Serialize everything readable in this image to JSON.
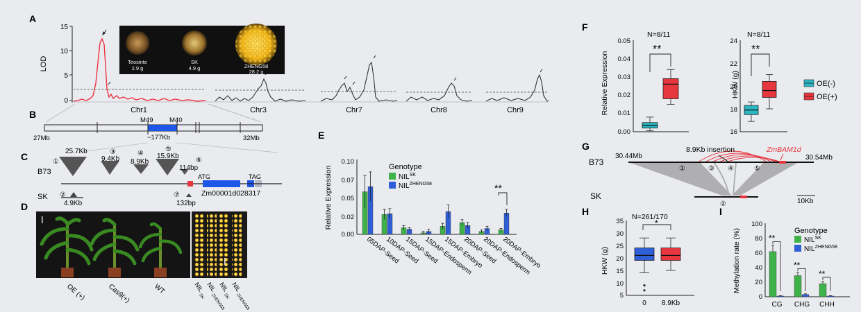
{
  "panels": {
    "a": {
      "letter": "A",
      "ylabel": "LOD",
      "yticks": [
        "15",
        "10",
        "5",
        "0"
      ],
      "chromosomes": [
        "Chr1",
        "Chr3",
        "Chr7",
        "Chr8",
        "Chr9"
      ],
      "photos": [
        {
          "name": "Teosinte",
          "weight": "2.9 g"
        },
        {
          "name": "SK",
          "weight": "4.9 g"
        },
        {
          "name": "ZHENG58",
          "weight": "28.2 g"
        }
      ]
    },
    "b": {
      "letter": "B",
      "left_end": "27Mb",
      "right_end": "32Mb",
      "marker_left": "M49",
      "marker_right": "M40",
      "interval": "~177Kb"
    },
    "c": {
      "letter": "C",
      "b73_label": "B73",
      "sk_label": "SK",
      "b73_numbers": [
        "①",
        "③",
        "④",
        "⑤",
        "⑥"
      ],
      "b73_sizes": [
        "25.7Kb",
        "9.4Kb",
        "8.9Kb",
        "15.9Kb",
        "114bp"
      ],
      "sk_numbers": [
        "②",
        "⑦"
      ],
      "sk_sizes": [
        "4.9Kb",
        "132bp"
      ],
      "atg": "ATG",
      "tag": "TAG",
      "gene_id": "Zm00001d028317"
    },
    "d": {
      "letter": "D",
      "plant_labels": [
        "OE (+)",
        "Cas9(+)",
        "WT"
      ],
      "kernel_labels": [
        "NIL",
        "SK",
        "NIL",
        "ZHENG58",
        "NIL",
        "SK",
        "NIL",
        "ZHENG58"
      ]
    },
    "e": {
      "letter": "E",
      "ylabel": "Relative Expression",
      "yticks": [
        "0.10",
        "0.07",
        "0.05",
        "0.02",
        "0.00"
      ],
      "legend_title": "Genotype",
      "legend_items": [
        {
          "base": "NIL",
          "sup": "SK"
        },
        {
          "base": "NIL",
          "sup": "ZHENG58"
        }
      ],
      "significance": "**",
      "categories": [
        "05DAP-Seed",
        "10DAP-Seed",
        "15DAP-Seed",
        "15DAP-Endosperm",
        "15DAP-Embryo",
        "20DAP-Seed",
        "20DAP-Endosperm",
        "20DAP-Embryo"
      ]
    },
    "f": {
      "letter": "F",
      "left_n": "N=8/11",
      "left_sig": "**",
      "left_ylabel": "Relative Expression",
      "left_yticks": [
        "0.05",
        "0.04",
        "0.03",
        "0.02",
        "0.01",
        "0.00"
      ],
      "right_n": "N=8/11",
      "right_sig": "**",
      "right_ylabel": "HKW (g)",
      "right_yticks": [
        "24",
        "22",
        "20",
        "18",
        "16"
      ],
      "legend": [
        "OE(-)",
        "OE(+)"
      ]
    },
    "g": {
      "letter": "G",
      "b73_label": "B73",
      "sk_label": "SK",
      "left_coord": "30.44Mb",
      "right_coord": "30.54Mb",
      "insertion_label": "8.9Kb insertion",
      "gene_label": "ZmBAM1d",
      "site_numbers": [
        "①",
        "③",
        "④",
        "⑤"
      ],
      "sk_site": "②",
      "scale": "10Kb"
    },
    "h": {
      "letter": "H",
      "n_label": "N=261/170",
      "sig": "*",
      "ylabel": "HKW (g)",
      "yticks": [
        "35",
        "30",
        "25",
        "20",
        "15",
        "10",
        "5"
      ],
      "xticks": [
        "0",
        "8.9Kb"
      ]
    },
    "i": {
      "letter": "I",
      "ylabel": "Methylation rate (%)",
      "yticks": [
        "100",
        "80",
        "60",
        "40",
        "20",
        "0"
      ],
      "legend_title": "Genotype",
      "legend_items": [
        {
          "base": "NIL",
          "sup": "SK"
        },
        {
          "base": "NIL",
          "sup": "ZHENG58"
        }
      ],
      "sigs": [
        "**",
        "**",
        "**"
      ],
      "categories": [
        "CG",
        "CHG",
        "CHH"
      ]
    }
  },
  "colors": {
    "green": "#3fb24a",
    "blue": "#2f5fd6",
    "teal": "#2bb6c4",
    "red": "#e8363f",
    "lod_red": "#ee3344"
  },
  "chart_data": [
    {
      "type": "bar",
      "panel": "E",
      "categories": [
        "05DAP-Seed",
        "10DAP-Seed",
        "15DAP-Seed",
        "15DAP-Endosperm",
        "15DAP-Embryo",
        "20DAP-Seed",
        "20DAP-Endosperm",
        "20DAP-Embryo"
      ],
      "series": [
        {
          "name": "NIL SK",
          "values": [
            0.058,
            0.027,
            0.009,
            0.002,
            0.011,
            0.016,
            0.004,
            0.006
          ]
        },
        {
          "name": "NIL ZHENG58",
          "values": [
            0.065,
            0.028,
            0.007,
            0.004,
            0.031,
            0.012,
            0.008,
            0.029
          ]
        }
      ],
      "errors": [
        [
          0.022,
          0.007,
          0.003,
          0.002,
          0.004,
          0.004,
          0.002,
          0.002
        ],
        [
          0.02,
          0.007,
          0.002,
          0.003,
          0.009,
          0.004,
          0.003,
          0.005
        ]
      ],
      "ylabel": "Relative Expression",
      "ylim": [
        0,
        0.1
      ]
    },
    {
      "type": "bar",
      "panel": "I",
      "categories": [
        "CG",
        "CHG",
        "CHH"
      ],
      "series": [
        {
          "name": "NIL SK",
          "values": [
            62,
            29,
            18
          ]
        },
        {
          "name": "NIL ZHENG58",
          "values": [
            1,
            3,
            1
          ]
        }
      ],
      "errors": [
        [
          8,
          4,
          3
        ],
        [
          0.5,
          1,
          0.5
        ]
      ],
      "ylabel": "Methylation rate (%)",
      "ylim": [
        0,
        100
      ]
    },
    {
      "type": "box",
      "panel": "F-left",
      "groups": [
        "OE(-)",
        "OE(+)"
      ],
      "boxes": [
        {
          "min": 0.0005,
          "q1": 0.002,
          "median": 0.0035,
          "q3": 0.005,
          "max": 0.008
        },
        {
          "min": 0.015,
          "q1": 0.018,
          "median": 0.026,
          "q3": 0.029,
          "max": 0.034
        }
      ],
      "ylim": [
        0,
        0.05
      ]
    },
    {
      "type": "box",
      "panel": "F-right",
      "groups": [
        "OE(-)",
        "OE(+)"
      ],
      "boxes": [
        {
          "min": 16.9,
          "q1": 17.5,
          "median": 17.9,
          "q3": 18.3,
          "max": 18.6
        },
        {
          "min": 18.0,
          "q1": 19.0,
          "median": 19.6,
          "q3": 20.4,
          "max": 21.0
        }
      ],
      "ylim": [
        16,
        24
      ]
    },
    {
      "type": "box",
      "panel": "H",
      "groups": [
        "0",
        "8.9Kb"
      ],
      "boxes": [
        {
          "min": 14,
          "q1": 19,
          "median": 21,
          "q3": 24,
          "max": 28,
          "outliers": [
            9,
            7
          ]
        },
        {
          "min": 15,
          "q1": 19,
          "median": 21,
          "q3": 24,
          "max": 28,
          "outliers": []
        }
      ],
      "ylim": [
        5,
        35
      ]
    }
  ]
}
